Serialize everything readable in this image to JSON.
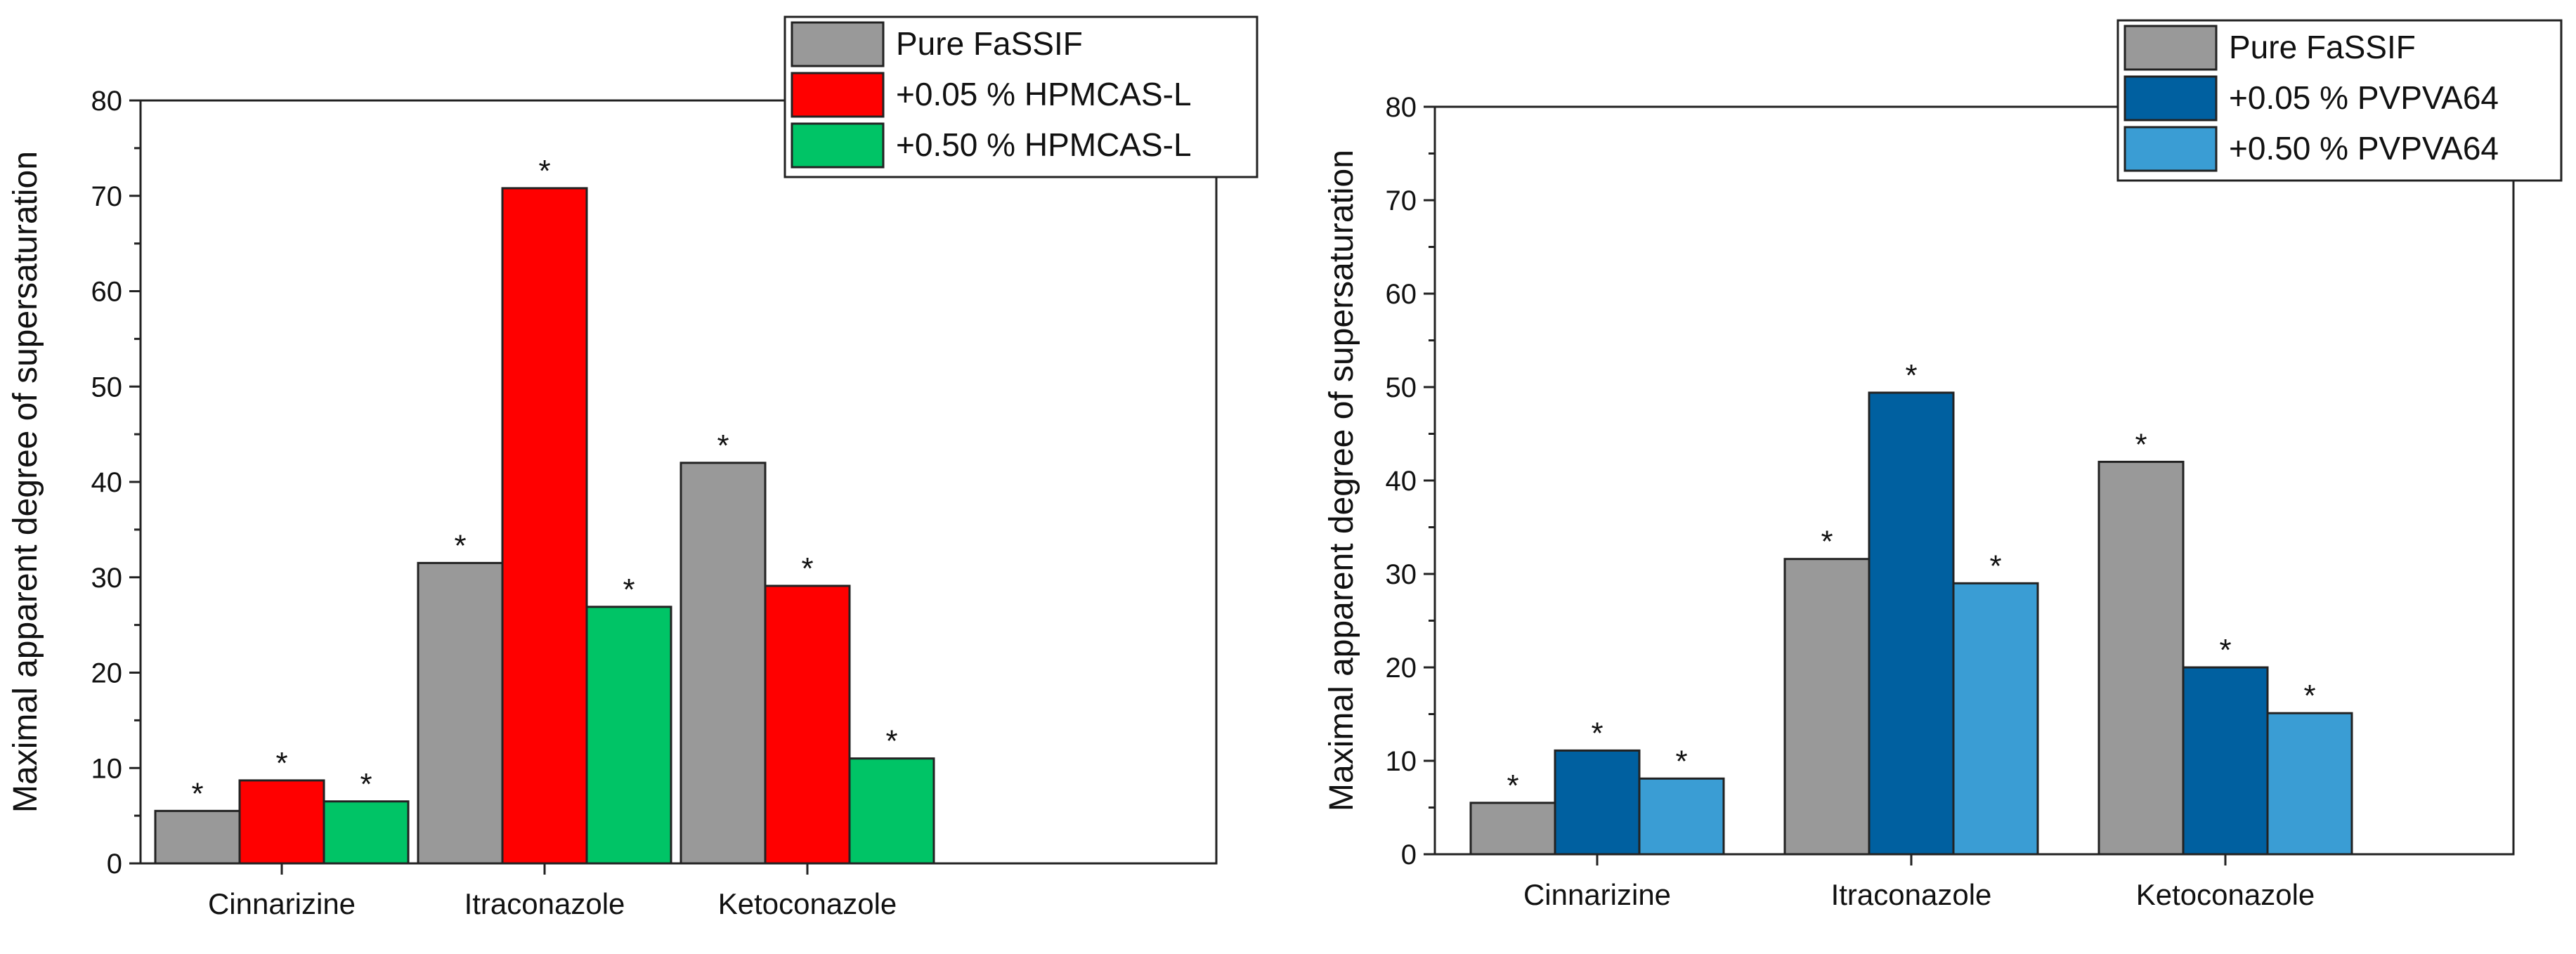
{
  "chart_data": [
    {
      "type": "bar",
      "categories": [
        "Cinnarizine",
        "Itraconazole",
        "Ketoconazole"
      ],
      "ylabel": "Maximal apparent degree of supersaturation",
      "ylim": [
        0,
        80
      ],
      "yticks": [
        "0",
        "10",
        "20",
        "30",
        "40",
        "50",
        "60",
        "70",
        "80"
      ],
      "legend_position": "top-right",
      "series": [
        {
          "name": "Pure FaSSIF",
          "color": "#999999",
          "values": [
            5.5,
            31.5,
            42.0
          ],
          "labels": [
            "*",
            "*",
            "*"
          ]
        },
        {
          "name": "+0.05 % HPMCAS-L",
          "color": "#ff0000",
          "values": [
            8.7,
            70.8,
            29.1
          ],
          "labels": [
            "*",
            "*",
            "*"
          ]
        },
        {
          "name": "+0.50 % HPMCAS-L",
          "color": "#00c466",
          "values": [
            6.5,
            26.9,
            11.0
          ],
          "labels": [
            "*",
            "*",
            "*"
          ]
        }
      ]
    },
    {
      "type": "bar",
      "categories": [
        "Cinnarizine",
        "Itraconazole",
        "Ketoconazole"
      ],
      "ylabel": "Maximal apparent degree of supersaturation",
      "ylim": [
        0,
        80
      ],
      "yticks": [
        "0",
        "10",
        "20",
        "30",
        "40",
        "50",
        "60",
        "70",
        "80"
      ],
      "legend_position": "top-right",
      "series": [
        {
          "name": "Pure FaSSIF",
          "color": "#999999",
          "values": [
            5.5,
            31.6,
            42.0
          ],
          "labels": [
            "*",
            "*",
            "*"
          ]
        },
        {
          "name": "+0.05 % PVPVA64",
          "color": "#0060a0",
          "values": [
            11.1,
            49.4,
            20.0
          ],
          "labels": [
            "*",
            "*",
            "*"
          ]
        },
        {
          "name": "+0.50 % PVPVA64",
          "color": "#3a9dd4",
          "values": [
            8.1,
            29.0,
            15.1
          ],
          "labels": [
            "*",
            "*",
            "*"
          ]
        }
      ]
    }
  ]
}
